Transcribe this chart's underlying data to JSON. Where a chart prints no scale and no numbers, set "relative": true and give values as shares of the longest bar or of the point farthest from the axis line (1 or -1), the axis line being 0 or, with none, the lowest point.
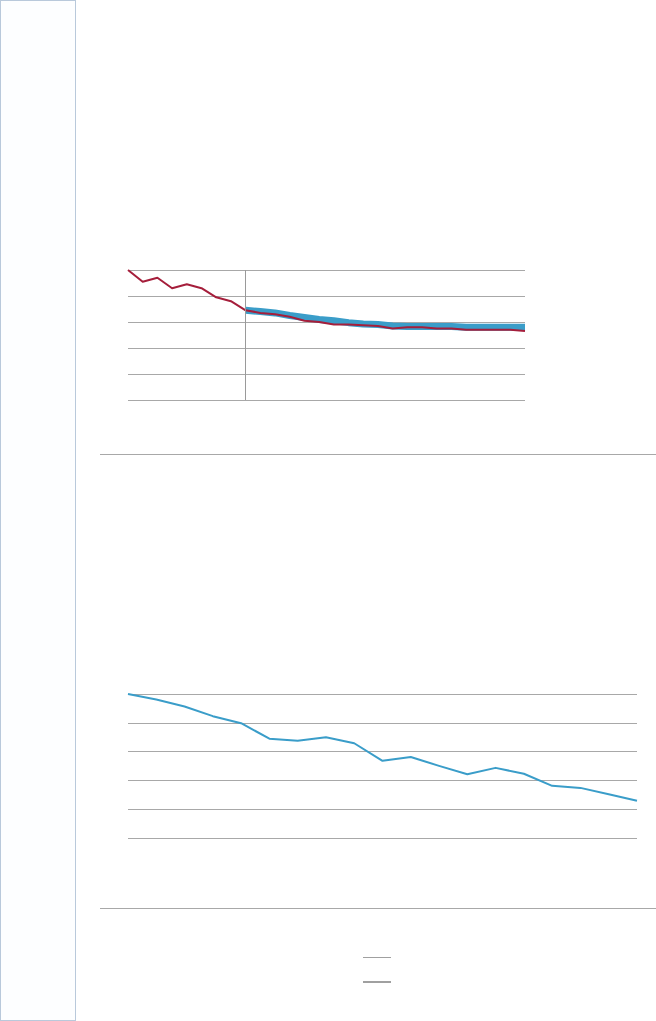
{
  "chart_data": [
    {
      "type": "line",
      "relative": true,
      "grid": "y",
      "marker": "none",
      "categories": [
        null,
        null,
        null,
        null,
        null,
        null,
        null,
        null,
        null,
        null,
        null,
        null,
        null,
        null,
        null,
        null,
        null,
        null,
        null,
        null,
        null,
        null,
        null,
        null,
        null,
        null,
        null,
        null
      ],
      "series": [
        {
          "color": "#3a9dc9",
          "values": [
            null,
            null,
            null,
            null,
            null,
            null,
            null,
            null,
            0.69,
            0.68,
            0.67,
            0.65,
            0.635,
            0.62,
            0.61,
            0.595,
            0.585,
            0.58,
            0.57,
            0.565,
            0.565,
            0.565,
            0.565,
            0.56,
            0.56,
            0.56,
            0.56,
            0.56
          ]
        },
        {
          "color": "#a51e3b",
          "values": [
            1,
            0.91,
            0.94,
            0.86,
            0.89,
            0.86,
            0.79,
            0.76,
            0.69,
            0.67,
            0.66,
            0.64,
            0.61,
            0.6,
            0.58,
            0.58,
            0.575,
            0.57,
            0.55,
            0.56,
            0.56,
            0.55,
            0.55,
            0.54,
            0.54,
            0.54,
            0.54,
            0.53
          ]
        }
      ]
    },
    {
      "type": "line",
      "relative": true,
      "grid": "y",
      "marker": "none",
      "categories": [
        null,
        null,
        null,
        null,
        null,
        null,
        null,
        null,
        null,
        null,
        null,
        null,
        null,
        null,
        null,
        null,
        null,
        null,
        null
      ],
      "series": [
        {
          "color": "#3a9dc9",
          "values": [
            1,
            0.962,
            0.913,
            0.846,
            0.797,
            0.69,
            0.675,
            0.699,
            0.658,
            0.536,
            0.562,
            0.501,
            0.443,
            0.487,
            0.446,
            0.362,
            0.348,
            0.304,
            0.258
          ]
        }
      ]
    }
  ]
}
